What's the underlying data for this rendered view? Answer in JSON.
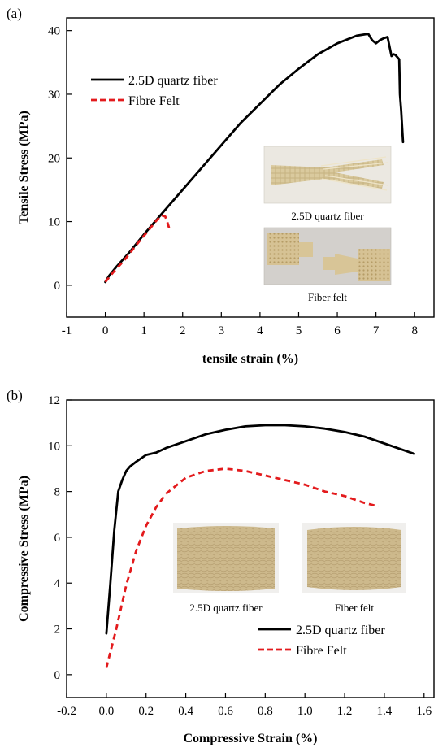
{
  "colors": {
    "series_quartz": "#000000",
    "series_felt": "#e31a1c",
    "inset_a_bg": "#e9e6df",
    "inset_b_bg": "#f2f2f2",
    "sample_color": "#d8c9a2"
  },
  "chart_data": [
    {
      "panel_label": "(a)",
      "type": "line",
      "xlabel": "tensile strain (%)",
      "ylabel": "Tensile Stress (MPa)",
      "xlim": [
        -1,
        8.5
      ],
      "ylim": [
        -5,
        42
      ],
      "xticks": [
        -1,
        0,
        1,
        2,
        3,
        4,
        5,
        6,
        7,
        8
      ],
      "yticks": [
        0,
        10,
        20,
        30,
        40
      ],
      "grid": false,
      "legend_position": "top-left",
      "series": [
        {
          "name": "2.5D quartz fiber",
          "color": "#000000",
          "style": "solid",
          "x": [
            0.0,
            0.1,
            0.3,
            0.6,
            1.0,
            1.5,
            2.0,
            2.5,
            3.0,
            3.5,
            4.0,
            4.5,
            5.0,
            5.5,
            6.0,
            6.5,
            6.8,
            6.9,
            7.0,
            7.1,
            7.2,
            7.3,
            7.4,
            7.45,
            7.5,
            7.6,
            7.62,
            7.65,
            7.7
          ],
          "y": [
            0.5,
            1.5,
            3.0,
            5.0,
            8.0,
            11.5,
            15.0,
            18.5,
            22.0,
            25.5,
            28.5,
            31.5,
            34.0,
            36.3,
            38.0,
            39.2,
            39.5,
            38.5,
            38.0,
            38.5,
            38.8,
            39.0,
            36.0,
            36.3,
            36.2,
            35.5,
            30.0,
            27.5,
            22.5
          ]
        },
        {
          "name": "Fibre Felt",
          "color": "#e31a1c",
          "style": "dashed",
          "x": [
            0.0,
            0.2,
            0.5,
            0.8,
            1.1,
            1.3,
            1.45,
            1.55,
            1.6,
            1.65,
            1.68
          ],
          "y": [
            0.5,
            2.0,
            4.0,
            6.3,
            8.5,
            10.0,
            11.0,
            10.8,
            10.0,
            9.0,
            8.5
          ]
        }
      ],
      "insets": [
        {
          "caption": "2.5D quartz fiber",
          "image": "photo of fractured 2.5D quartz fiber tensile specimen"
        },
        {
          "caption": "Fiber felt",
          "image": "photo of fractured fiber felt dog-bone specimen"
        }
      ]
    },
    {
      "panel_label": "(b)",
      "type": "line",
      "xlabel": "Compressive Strain (%)",
      "ylabel": "Compressive Stress (MPa)",
      "xlim": [
        -0.2,
        1.65
      ],
      "ylim": [
        -1,
        12
      ],
      "xticks": [
        "-0.2",
        "0.0",
        "0.2",
        "0.4",
        "0.6",
        "0.8",
        "1.0",
        "1.2",
        "1.4",
        "1.6"
      ],
      "yticks": [
        0,
        2,
        4,
        6,
        8,
        10,
        12
      ],
      "grid": false,
      "legend_position": "bottom-right",
      "series": [
        {
          "name": "2.5D quartz fiber",
          "color": "#000000",
          "style": "solid",
          "x": [
            0.0,
            0.02,
            0.04,
            0.06,
            0.08,
            0.1,
            0.12,
            0.15,
            0.2,
            0.25,
            0.3,
            0.4,
            0.5,
            0.6,
            0.7,
            0.8,
            0.9,
            1.0,
            1.1,
            1.2,
            1.3,
            1.4,
            1.5,
            1.55
          ],
          "y": [
            1.8,
            4.0,
            6.3,
            8.0,
            8.5,
            8.9,
            9.1,
            9.3,
            9.6,
            9.7,
            9.9,
            10.2,
            10.5,
            10.7,
            10.85,
            10.9,
            10.9,
            10.85,
            10.75,
            10.6,
            10.4,
            10.1,
            9.8,
            9.65
          ]
        },
        {
          "name": "Fibre Felt",
          "color": "#e31a1c",
          "style": "dashed",
          "x": [
            0.0,
            0.05,
            0.1,
            0.15,
            0.2,
            0.25,
            0.3,
            0.4,
            0.5,
            0.6,
            0.7,
            0.8,
            0.9,
            1.0,
            1.1,
            1.2,
            1.3,
            1.37
          ],
          "y": [
            0.3,
            2.0,
            3.9,
            5.4,
            6.5,
            7.3,
            7.9,
            8.6,
            8.9,
            9.0,
            8.9,
            8.7,
            8.5,
            8.3,
            8.0,
            7.8,
            7.5,
            7.35
          ]
        }
      ],
      "insets": [
        {
          "caption": "2.5D quartz fiber",
          "image": "photo of 2.5D quartz fiber compression block"
        },
        {
          "caption": "Fiber felt",
          "image": "photo of fiber felt compression block"
        }
      ]
    }
  ]
}
